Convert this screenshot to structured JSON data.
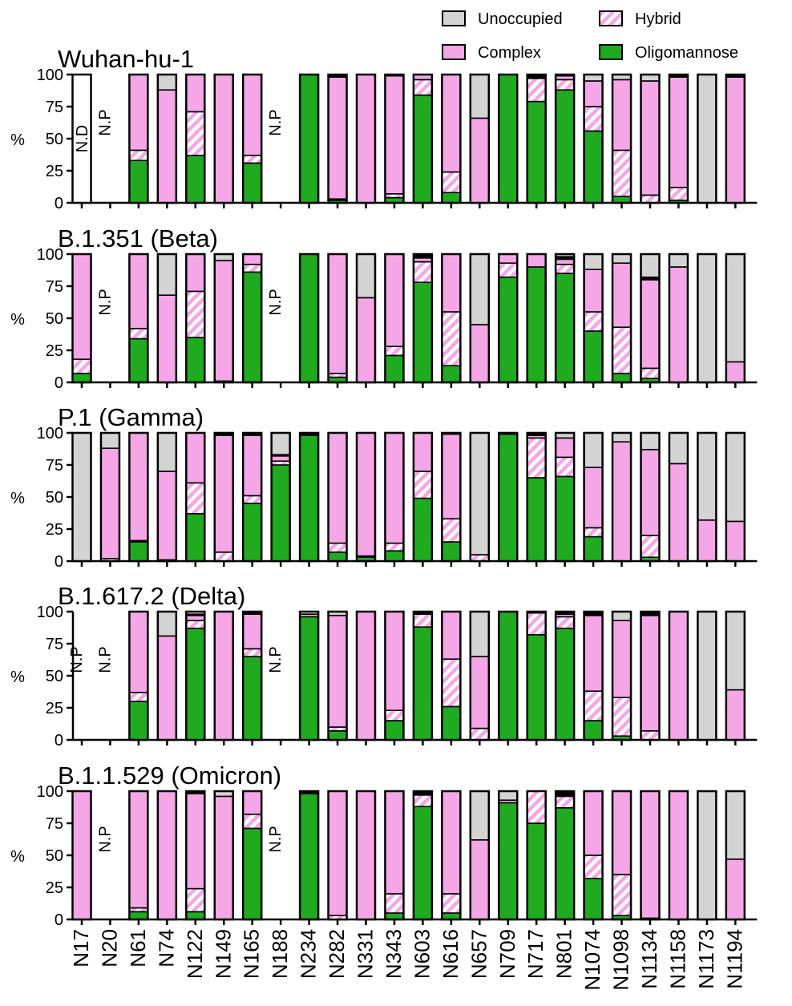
{
  "legend": [
    {
      "label": "Unoccupied",
      "key": "unocc",
      "color": "#d3d3d3"
    },
    {
      "label": "Hybrid",
      "key": "hybrid",
      "color": "#f4a6e6"
    },
    {
      "label": "Complex",
      "key": "complex",
      "color": "#f4a6e6"
    },
    {
      "label": "Oligomannose",
      "key": "oligo",
      "color": "#1faa1f"
    }
  ],
  "colors": {
    "complex": "#f4a6e6",
    "hybrid_stripe": "#f4a6e6",
    "oligo": "#1faa1f",
    "unocc": "#d3d3d3",
    "core": "#000000"
  },
  "chart_data": {
    "type": "bar",
    "stacking": "stacked-percent",
    "ylabel": "%",
    "ylim": [
      0,
      100
    ],
    "yticks": [
      0,
      25,
      50,
      75,
      100
    ],
    "stack_order": [
      "oligo",
      "hybrid",
      "complex",
      "core",
      "unocc"
    ],
    "categories": [
      "N17",
      "N20",
      "N61",
      "N74",
      "N122",
      "N149",
      "N165",
      "N188",
      "N234",
      "N282",
      "N331",
      "N343",
      "N603",
      "N616",
      "N657",
      "N709",
      "N717",
      "N801",
      "N1074",
      "N1098",
      "N1134",
      "N1158",
      "N1173",
      "N1194"
    ],
    "panels": [
      {
        "title": "Wuhan-hu-1",
        "bars": {
          "N17": {
            "label": "N.D",
            "empty": true
          },
          "N20": {
            "label": "N.P"
          },
          "N61": {
            "oligo": 33,
            "hybrid": 8,
            "complex": 59,
            "unocc": 0
          },
          "N74": {
            "oligo": 0,
            "hybrid": 0,
            "complex": 88,
            "unocc": 12
          },
          "N122": {
            "oligo": 37,
            "hybrid": 34,
            "complex": 29,
            "unocc": 0
          },
          "N149": {
            "oligo": 0,
            "hybrid": 0,
            "complex": 100,
            "unocc": 0
          },
          "N165": {
            "oligo": 31,
            "hybrid": 6,
            "complex": 63,
            "unocc": 0
          },
          "N188": {
            "label": "N.P"
          },
          "N234": {
            "oligo": 100,
            "hybrid": 0,
            "complex": 0,
            "unocc": 0
          },
          "N282": {
            "oligo": 2,
            "hybrid": 1,
            "complex": 95,
            "core": 2,
            "unocc": 0
          },
          "N331": {
            "oligo": 0,
            "hybrid": 0,
            "complex": 100,
            "unocc": 0
          },
          "N343": {
            "oligo": 4,
            "hybrid": 3,
            "complex": 92,
            "core": 1,
            "unocc": 0
          },
          "N603": {
            "oligo": 84,
            "hybrid": 12,
            "complex": 4,
            "unocc": 0
          },
          "N616": {
            "oligo": 8,
            "hybrid": 16,
            "complex": 76,
            "unocc": 0
          },
          "N657": {
            "oligo": 0,
            "hybrid": 0,
            "complex": 66,
            "unocc": 34
          },
          "N709": {
            "oligo": 100,
            "hybrid": 0,
            "complex": 0,
            "unocc": 0
          },
          "N717": {
            "oligo": 79,
            "hybrid": 18,
            "complex": 1,
            "core": 2,
            "unocc": 0
          },
          "N801": {
            "oligo": 88,
            "hybrid": 8,
            "complex": 3,
            "core": 1,
            "unocc": 0
          },
          "N1074": {
            "oligo": 56,
            "hybrid": 19,
            "complex": 20,
            "unocc": 5
          },
          "N1098": {
            "oligo": 5,
            "hybrid": 36,
            "complex": 55,
            "unocc": 4
          },
          "N1134": {
            "oligo": 0,
            "hybrid": 6,
            "complex": 89,
            "unocc": 5
          },
          "N1158": {
            "oligo": 2,
            "hybrid": 10,
            "complex": 86,
            "core": 2,
            "unocc": 0
          },
          "N1173": {
            "oligo": 0,
            "hybrid": 0,
            "complex": 0,
            "unocc": 100
          },
          "N1194": {
            "oligo": 0,
            "hybrid": 0,
            "complex": 98,
            "core": 2,
            "unocc": 0
          }
        }
      },
      {
        "title": "B.1.351 (Beta)",
        "bars": {
          "N17": {
            "oligo": 7,
            "hybrid": 11,
            "complex": 82,
            "unocc": 0
          },
          "N20": {
            "label": "N.P"
          },
          "N61": {
            "oligo": 34,
            "hybrid": 8,
            "complex": 58,
            "unocc": 0
          },
          "N74": {
            "oligo": 0,
            "hybrid": 0,
            "complex": 68,
            "unocc": 32
          },
          "N122": {
            "oligo": 35,
            "hybrid": 36,
            "complex": 29,
            "unocc": 0
          },
          "N149": {
            "oligo": 1,
            "hybrid": 0,
            "complex": 94,
            "unocc": 5
          },
          "N165": {
            "oligo": 86,
            "hybrid": 6,
            "complex": 8,
            "unocc": 0
          },
          "N188": {
            "label": "N.P"
          },
          "N234": {
            "oligo": 100,
            "hybrid": 0,
            "complex": 0,
            "unocc": 0
          },
          "N282": {
            "oligo": 4,
            "hybrid": 3,
            "complex": 93,
            "unocc": 0
          },
          "N331": {
            "oligo": 0,
            "hybrid": 0,
            "complex": 66,
            "unocc": 34
          },
          "N343": {
            "oligo": 21,
            "hybrid": 7,
            "complex": 72,
            "unocc": 0
          },
          "N603": {
            "oligo": 78,
            "hybrid": 16,
            "complex": 3,
            "core": 3,
            "unocc": 0
          },
          "N616": {
            "oligo": 13,
            "hybrid": 42,
            "complex": 45,
            "unocc": 0
          },
          "N657": {
            "oligo": 0,
            "hybrid": 0,
            "complex": 45,
            "unocc": 55
          },
          "N709": {
            "oligo": 82,
            "hybrid": 11,
            "complex": 7,
            "unocc": 0
          },
          "N717": {
            "oligo": 90,
            "hybrid": 0,
            "complex": 10,
            "unocc": 0
          },
          "N801": {
            "oligo": 85,
            "hybrid": 7,
            "complex": 4,
            "core": 2,
            "unocc": 2
          },
          "N1074": {
            "oligo": 40,
            "hybrid": 15,
            "complex": 33,
            "unocc": 12
          },
          "N1098": {
            "oligo": 7,
            "hybrid": 36,
            "complex": 50,
            "unocc": 7
          },
          "N1134": {
            "oligo": 3,
            "hybrid": 8,
            "complex": 69,
            "core": 2,
            "unocc": 18
          },
          "N1158": {
            "oligo": 0,
            "hybrid": 0,
            "complex": 90,
            "unocc": 10
          },
          "N1173": {
            "oligo": 0,
            "hybrid": 0,
            "complex": 0,
            "unocc": 100
          },
          "N1194": {
            "oligo": 0,
            "hybrid": 0,
            "complex": 16,
            "unocc": 84
          }
        }
      },
      {
        "title": "P.1 (Gamma)",
        "bars": {
          "N17": {
            "oligo": 0,
            "hybrid": 0,
            "complex": 0,
            "unocc": 100
          },
          "N20": {
            "oligo": 0,
            "hybrid": 2,
            "complex": 86,
            "unocc": 12
          },
          "N61": {
            "oligo": 15,
            "hybrid": 1,
            "complex": 84,
            "unocc": 0
          },
          "N74": {
            "oligo": 0,
            "hybrid": 1,
            "complex": 69,
            "unocc": 30
          },
          "N122": {
            "oligo": 37,
            "hybrid": 24,
            "complex": 39,
            "unocc": 0
          },
          "N149": {
            "oligo": 0,
            "hybrid": 7,
            "complex": 91,
            "core": 1,
            "unocc": 1
          },
          "N165": {
            "oligo": 45,
            "hybrid": 6,
            "complex": 47,
            "core": 2,
            "unocc": 0
          },
          "N188": {
            "oligo": 75,
            "hybrid": 3,
            "complex": 4,
            "core": 1,
            "unocc": 17
          },
          "N234": {
            "oligo": 98,
            "hybrid": 0,
            "complex": 0,
            "core": 2,
            "unocc": 0
          },
          "N282": {
            "oligo": 7,
            "hybrid": 7,
            "complex": 86,
            "unocc": 0
          },
          "N331": {
            "oligo": 3,
            "hybrid": 1,
            "complex": 96,
            "unocc": 0
          },
          "N343": {
            "oligo": 8,
            "hybrid": 6,
            "complex": 86,
            "unocc": 0
          },
          "N603": {
            "oligo": 49,
            "hybrid": 21,
            "complex": 30,
            "unocc": 0
          },
          "N616": {
            "oligo": 15,
            "hybrid": 18,
            "complex": 66,
            "core": 1,
            "unocc": 0
          },
          "N657": {
            "oligo": 0,
            "hybrid": 5,
            "complex": 0,
            "unocc": 95
          },
          "N709": {
            "oligo": 99,
            "hybrid": 0,
            "complex": 0,
            "core": 1,
            "unocc": 0
          },
          "N717": {
            "oligo": 65,
            "hybrid": 31,
            "complex": 2,
            "core": 2,
            "unocc": 0
          },
          "N801": {
            "oligo": 66,
            "hybrid": 15,
            "complex": 15,
            "unocc": 4
          },
          "N1074": {
            "oligo": 19,
            "hybrid": 7,
            "complex": 47,
            "unocc": 27
          },
          "N1098": {
            "oligo": 0,
            "hybrid": 0,
            "complex": 93,
            "unocc": 7
          },
          "N1134": {
            "oligo": 3,
            "hybrid": 17,
            "complex": 67,
            "unocc": 13
          },
          "N1158": {
            "oligo": 0,
            "hybrid": 0,
            "complex": 76,
            "unocc": 24
          },
          "N1173": {
            "oligo": 0,
            "hybrid": 0,
            "complex": 32,
            "unocc": 68
          },
          "N1194": {
            "oligo": 0,
            "hybrid": 0,
            "complex": 31,
            "unocc": 69
          }
        }
      },
      {
        "title": "B.1.617.2 (Delta)",
        "bars": {
          "N17": {
            "label": "N.P"
          },
          "N20": {
            "label": "N.P"
          },
          "N61": {
            "oligo": 30,
            "hybrid": 7,
            "complex": 63,
            "unocc": 0
          },
          "N74": {
            "oligo": 0,
            "hybrid": 0,
            "complex": 81,
            "unocc": 19
          },
          "N122": {
            "oligo": 87,
            "hybrid": 6,
            "complex": 4,
            "core": 1,
            "unocc": 2
          },
          "N149": {
            "oligo": 0,
            "hybrid": 0,
            "complex": 100,
            "unocc": 0
          },
          "N165": {
            "oligo": 65,
            "hybrid": 6,
            "complex": 27,
            "core": 2,
            "unocc": 0
          },
          "N188": {
            "label": "N.P"
          },
          "N234": {
            "oligo": 96,
            "hybrid": 0,
            "complex": 2,
            "unocc": 2
          },
          "N282": {
            "oligo": 7,
            "hybrid": 3,
            "complex": 87,
            "unocc": 3
          },
          "N331": {
            "oligo": 0,
            "hybrid": 0,
            "complex": 100,
            "unocc": 0
          },
          "N343": {
            "oligo": 15,
            "hybrid": 8,
            "complex": 77,
            "unocc": 0
          },
          "N603": {
            "oligo": 88,
            "hybrid": 10,
            "complex": 1,
            "core": 1,
            "unocc": 0
          },
          "N616": {
            "oligo": 26,
            "hybrid": 37,
            "complex": 37,
            "unocc": 0
          },
          "N657": {
            "oligo": 0,
            "hybrid": 9,
            "complex": 56,
            "unocc": 35
          },
          "N709": {
            "oligo": 100,
            "hybrid": 0,
            "complex": 0,
            "unocc": 0
          },
          "N717": {
            "oligo": 82,
            "hybrid": 17,
            "complex": 1,
            "unocc": 0
          },
          "N801": {
            "oligo": 87,
            "hybrid": 9,
            "complex": 2,
            "core": 2,
            "unocc": 0
          },
          "N1074": {
            "oligo": 15,
            "hybrid": 23,
            "complex": 59,
            "core": 2,
            "unocc": 1
          },
          "N1098": {
            "oligo": 3,
            "hybrid": 30,
            "complex": 60,
            "unocc": 7
          },
          "N1134": {
            "oligo": 0,
            "hybrid": 7,
            "complex": 90,
            "core": 3,
            "unocc": 0
          },
          "N1158": {
            "oligo": 0,
            "hybrid": 0,
            "complex": 100,
            "unocc": 0
          },
          "N1173": {
            "oligo": 0,
            "hybrid": 0,
            "complex": 0,
            "unocc": 100
          },
          "N1194": {
            "oligo": 0,
            "hybrid": 0,
            "complex": 39,
            "unocc": 61
          }
        }
      },
      {
        "title": "B.1.1.529 (Omicron)",
        "bars": {
          "N17": {
            "oligo": 0,
            "hybrid": 0,
            "complex": 100,
            "unocc": 0
          },
          "N20": {
            "label": "N.P"
          },
          "N61": {
            "oligo": 6,
            "hybrid": 3,
            "complex": 91,
            "unocc": 0
          },
          "N74": {
            "oligo": 0,
            "hybrid": 0,
            "complex": 100,
            "unocc": 0
          },
          "N122": {
            "oligo": 6,
            "hybrid": 18,
            "complex": 74,
            "core": 2,
            "unocc": 0
          },
          "N149": {
            "oligo": 0,
            "hybrid": 0,
            "complex": 96,
            "unocc": 4
          },
          "N165": {
            "oligo": 71,
            "hybrid": 11,
            "complex": 18,
            "unocc": 0
          },
          "N188": {
            "label": "N.P"
          },
          "N234": {
            "oligo": 98,
            "hybrid": 0,
            "complex": 0,
            "core": 2,
            "unocc": 0
          },
          "N282": {
            "oligo": 0,
            "hybrid": 3,
            "complex": 97,
            "unocc": 0
          },
          "N331": {
            "oligo": 0,
            "hybrid": 0,
            "complex": 100,
            "unocc": 0
          },
          "N343": {
            "oligo": 5,
            "hybrid": 15,
            "complex": 80,
            "unocc": 0
          },
          "N603": {
            "oligo": 88,
            "hybrid": 9,
            "complex": 1,
            "core": 2,
            "unocc": 0
          },
          "N616": {
            "oligo": 5,
            "hybrid": 15,
            "complex": 80,
            "unocc": 0
          },
          "N657": {
            "oligo": 0,
            "hybrid": 0,
            "complex": 62,
            "unocc": 38
          },
          "N709": {
            "oligo": 91,
            "hybrid": 0,
            "complex": 2,
            "unocc": 7
          },
          "N717": {
            "oligo": 75,
            "hybrid": 25,
            "complex": 0,
            "unocc": 0
          },
          "N801": {
            "oligo": 87,
            "hybrid": 9,
            "complex": 1,
            "core": 3,
            "unocc": 0
          },
          "N1074": {
            "oligo": 32,
            "hybrid": 18,
            "complex": 50,
            "unocc": 0
          },
          "N1098": {
            "oligo": 3,
            "hybrid": 32,
            "complex": 65,
            "unocc": 0
          },
          "N1134": {
            "oligo": 0,
            "hybrid": 1,
            "complex": 99,
            "unocc": 0
          },
          "N1158": {
            "oligo": 0,
            "hybrid": 0,
            "complex": 100,
            "unocc": 0
          },
          "N1173": {
            "oligo": 0,
            "hybrid": 0,
            "complex": 0,
            "unocc": 100
          },
          "N1194": {
            "oligo": 0,
            "hybrid": 0,
            "complex": 47,
            "unocc": 53
          }
        }
      }
    ]
  }
}
